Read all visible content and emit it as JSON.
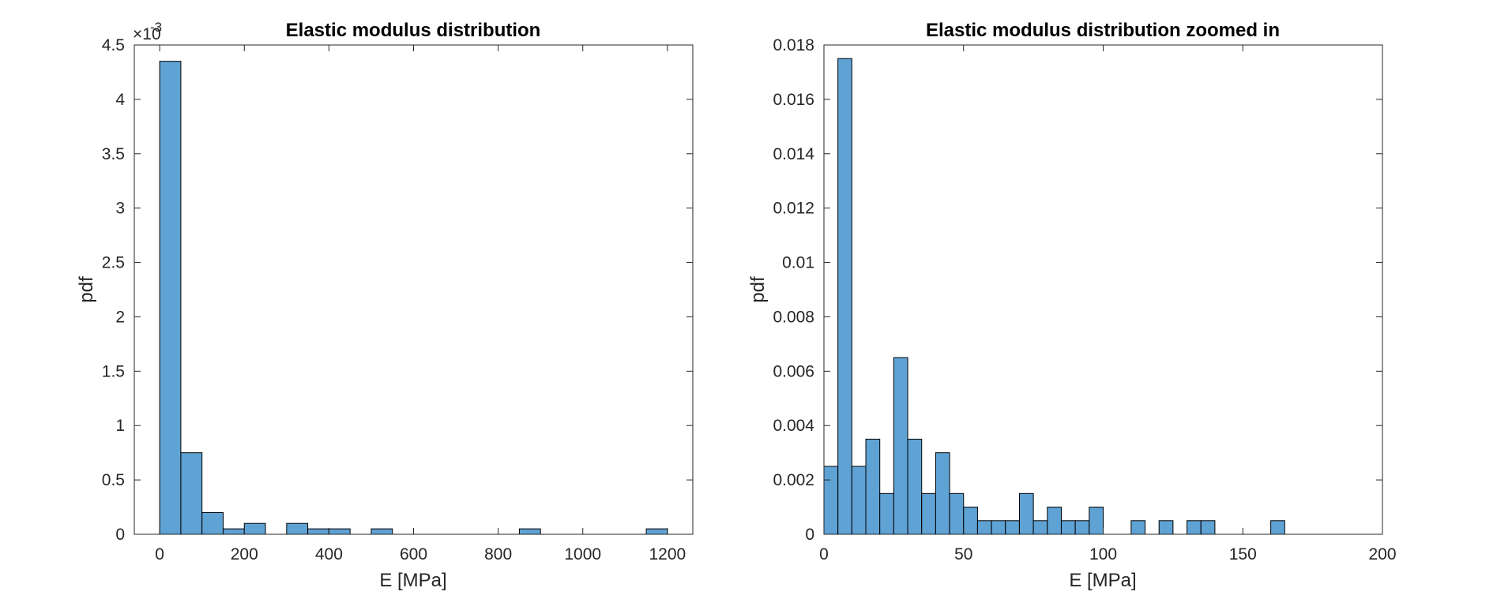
{
  "chart_data": [
    {
      "type": "bar",
      "title": "Elastic modulus distribution",
      "xlabel": "E [MPa]",
      "ylabel": "pdf",
      "xlim": [
        -60,
        1260
      ],
      "ylim": [
        0,
        0.0045
      ],
      "x_ticks": [
        0,
        200,
        400,
        600,
        800,
        1000,
        1200
      ],
      "y_ticks": [
        0,
        0.0005,
        0.001,
        0.0015,
        0.002,
        0.0025,
        0.003,
        0.0035,
        0.004,
        0.0045
      ],
      "y_tick_labels": [
        "0",
        "0.5",
        "1",
        "1.5",
        "2",
        "2.5",
        "3",
        "3.5",
        "4",
        "4.5"
      ],
      "y_exponent_label": "×10",
      "y_exponent_value": "-3",
      "bin_edges": [
        0,
        50,
        100,
        150,
        200,
        250,
        300,
        350,
        400,
        450,
        500,
        550,
        600,
        650,
        700,
        750,
        800,
        850,
        900,
        950,
        1000,
        1050,
        1100,
        1150,
        1200
      ],
      "values": [
        0.00435,
        0.00075,
        0.0002,
        5e-05,
        0.0001,
        0,
        0.0001,
        5e-05,
        5e-05,
        0,
        5e-05,
        0,
        0,
        0,
        0,
        0,
        0,
        5e-05,
        0,
        0,
        0,
        0,
        0,
        5e-05
      ],
      "grid": false,
      "bar_color": "#5fa2d4"
    },
    {
      "type": "bar",
      "title": "Elastic modulus distribution zoomed in",
      "xlabel": "E [MPa]",
      "ylabel": "pdf",
      "xlim": [
        0,
        200
      ],
      "ylim": [
        0,
        0.018
      ],
      "x_ticks": [
        0,
        50,
        100,
        150,
        200
      ],
      "y_ticks": [
        0,
        0.002,
        0.004,
        0.006,
        0.008,
        0.01,
        0.012,
        0.014,
        0.016,
        0.018
      ],
      "y_tick_labels": [
        "0",
        "0.002",
        "0.004",
        "0.006",
        "0.008",
        "0.01",
        "0.012",
        "0.014",
        "0.016",
        "0.018"
      ],
      "bin_edges": [
        0,
        5,
        10,
        15,
        20,
        25,
        30,
        35,
        40,
        45,
        50,
        55,
        60,
        65,
        70,
        75,
        80,
        85,
        90,
        95,
        100,
        105,
        110,
        115,
        120,
        125,
        130,
        135,
        140,
        145,
        150,
        155,
        160,
        165
      ],
      "values": [
        0.0025,
        0.0175,
        0.0025,
        0.0035,
        0.0015,
        0.0065,
        0.0035,
        0.0015,
        0.003,
        0.0015,
        0.001,
        0.0005,
        0.0005,
        0.0005,
        0.0015,
        0.0005,
        0.001,
        0.0005,
        0.0005,
        0.001,
        0,
        0,
        0.0005,
        0,
        0.0005,
        0,
        0.0005,
        0.0005,
        0,
        0,
        0,
        0,
        0.0005
      ],
      "grid": false,
      "bar_color": "#5fa2d4"
    }
  ]
}
